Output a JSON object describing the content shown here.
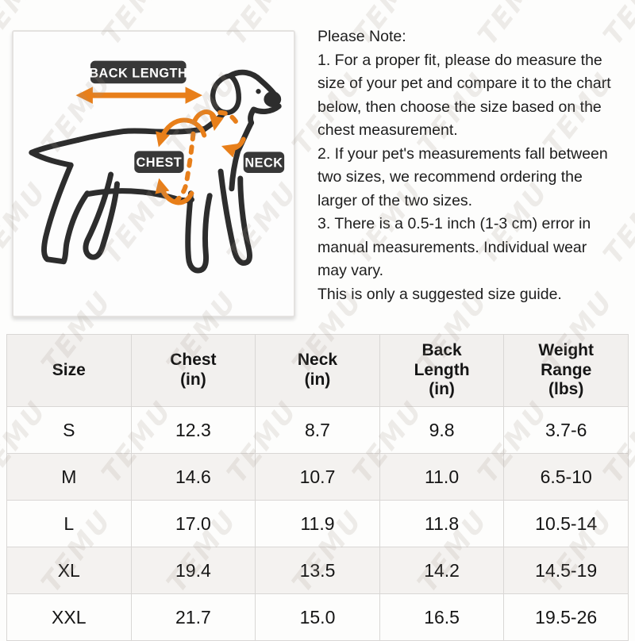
{
  "watermark": {
    "text": "TEMU"
  },
  "colors": {
    "accent_orange": "#e87f1a",
    "label_bg": "#383838",
    "table_header_bg": "#f2f0ee",
    "table_alt_row_bg": "#f4f2f0",
    "dog_line": "#2d2d2d"
  },
  "diagram": {
    "back_length_label": "BACK LENGTH",
    "chest_label": "CHEST",
    "neck_label": "NECK"
  },
  "note": {
    "lines": [
      "Please Note:",
      "1. For a proper fit, please do measure the",
      "size of your pet and compare it to the chart",
      "below, then choose the size based on the",
      "chest measurement.",
      "2. If your pet's measurements fall between",
      "two sizes, we recommend ordering the",
      "larger of the two sizes.",
      "3. There is a 0.5-1 inch (1-3 cm) error in",
      "manual measurements. Individual wear",
      "may vary.",
      "This is only a suggested size guide."
    ]
  },
  "size_table": {
    "headers": [
      "Size",
      "Chest\n(in)",
      "Neck\n(in)",
      "Back\nLength\n(in)",
      "Weight\nRange\n(lbs)"
    ],
    "rows": [
      [
        "S",
        "12.3",
        "8.7",
        "9.8",
        "3.7-6"
      ],
      [
        "M",
        "14.6",
        "10.7",
        "11.0",
        "6.5-10"
      ],
      [
        "L",
        "17.0",
        "11.9",
        "11.8",
        "10.5-14"
      ],
      [
        "XL",
        "19.4",
        "13.5",
        "14.2",
        "14.5-19"
      ],
      [
        "XXL",
        "21.7",
        "15.0",
        "16.5",
        "19.5-26"
      ]
    ]
  }
}
